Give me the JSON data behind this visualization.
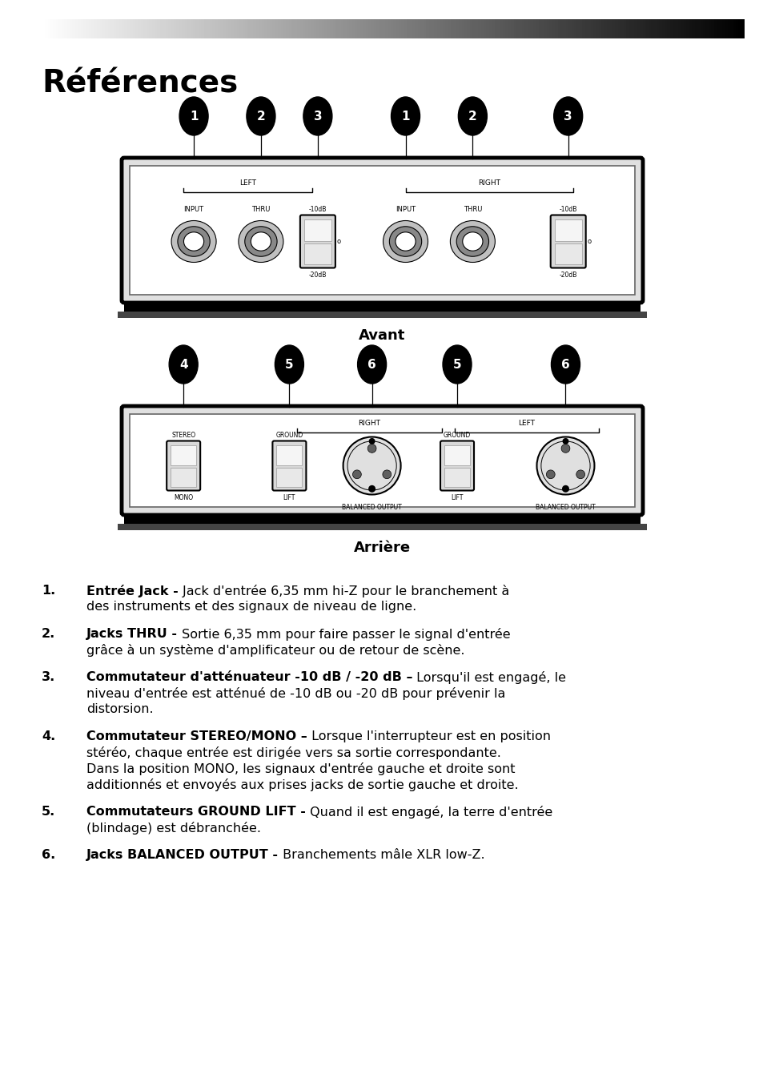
{
  "title": "Références",
  "avant_label": "Avant",
  "arriere_label": "Arrière",
  "items": [
    {
      "num": "1.",
      "bold_part": "Entrée Jack -",
      "normal_part": " Jack d'entrée 6,35 mm hi-Z pour le branchement à des instruments et des signaux de niveau de ligne."
    },
    {
      "num": "2.",
      "bold_part": "Jacks THRU -",
      "normal_part": " Sortie 6,35 mm pour faire passer le signal d'entrée grâce à un système d'amplificateur ou de retour de scène."
    },
    {
      "num": "3.",
      "bold_part": "Commutateur d'atténuateur -10 dB / -20 dB –",
      "normal_part": " Lorsqu'il est engagé, le niveau d'entrée est atténué de -10 dB ou -20 dB pour prévenir la distorsion."
    },
    {
      "num": "4.",
      "bold_part": "Commutateur STEREO/MONO –",
      "normal_part": " Lorsque l'interrupteur est en position stéréo, chaque entrée est dirigée vers sa sortie correspondante. Dans la position MONO, les signaux d'entrée gauche et droite sont additionnés et envoyés aux prises jacks de sortie gauche et droite."
    },
    {
      "num": "5.",
      "bold_part": "Commutateurs GROUND LIFT -",
      "normal_part": " Quand il est engagé, la terre d'entrée (blindage) est débranchée."
    },
    {
      "num": "6.",
      "bold_part": "Jacks BALANCED OUTPUT -",
      "normal_part": " Branchements mâle XLR low-Z."
    }
  ],
  "bg_color": "#ffffff",
  "text_color": "#000000"
}
